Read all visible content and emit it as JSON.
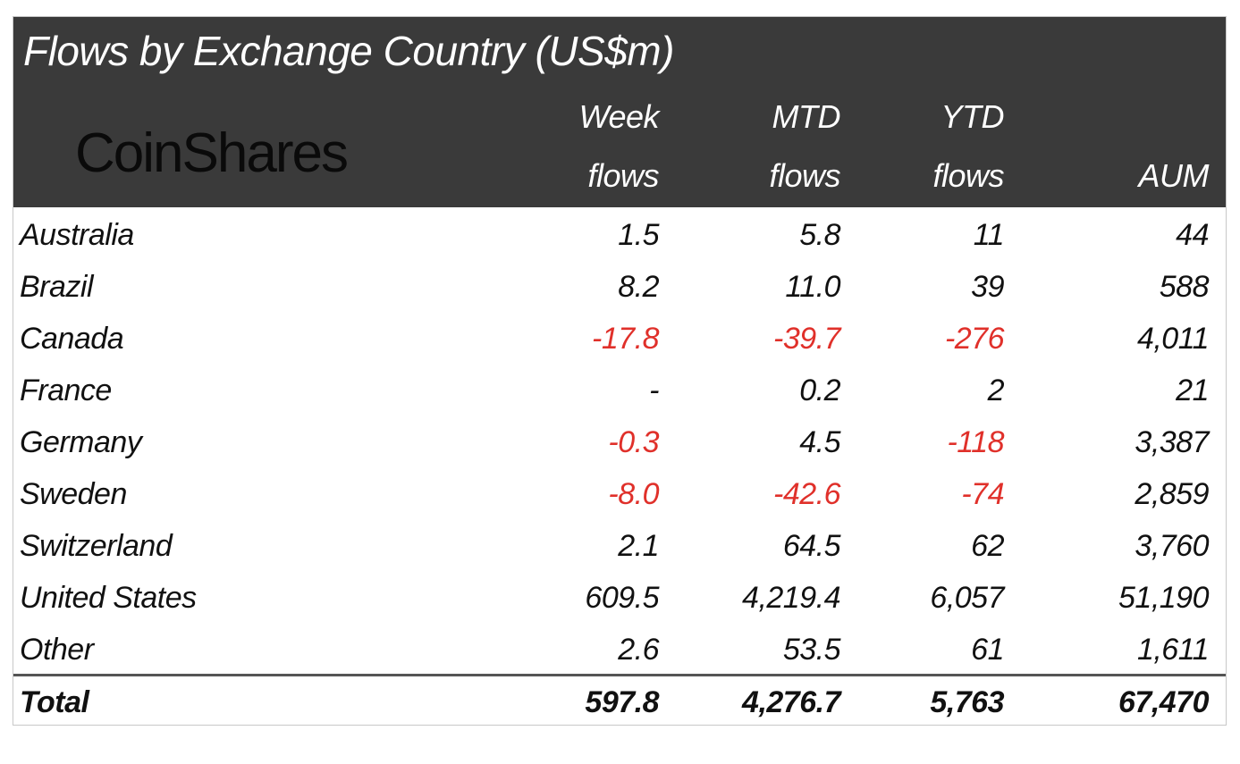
{
  "chart_data": {
    "type": "table",
    "title": "Flows by Exchange Country (US$m)",
    "logo": "CoinShares",
    "columns": [
      {
        "line1": "Week",
        "line2": "flows"
      },
      {
        "line1": "MTD",
        "line2": "flows"
      },
      {
        "line1": "YTD",
        "line2": "flows"
      },
      {
        "line1": "",
        "line2": "AUM"
      }
    ],
    "rows": [
      {
        "country": "Australia",
        "values": [
          "1.5",
          "5.8",
          "11",
          "44"
        ]
      },
      {
        "country": "Brazil",
        "values": [
          "8.2",
          "11.0",
          "39",
          "588"
        ]
      },
      {
        "country": "Canada",
        "values": [
          "-17.8",
          "-39.7",
          "-276",
          "4,011"
        ]
      },
      {
        "country": "France",
        "values": [
          "-",
          "0.2",
          "2",
          "21"
        ]
      },
      {
        "country": "Germany",
        "values": [
          "-0.3",
          "4.5",
          "-118",
          "3,387"
        ]
      },
      {
        "country": "Sweden",
        "values": [
          "-8.0",
          "-42.6",
          "-74",
          "2,859"
        ]
      },
      {
        "country": "Switzerland",
        "values": [
          "2.1",
          "64.5",
          "62",
          "3,760"
        ]
      },
      {
        "country": "United States",
        "values": [
          "609.5",
          "4,219.4",
          "6,057",
          "51,190"
        ]
      },
      {
        "country": "Other",
        "values": [
          "2.6",
          "53.5",
          "61",
          "1,611"
        ]
      }
    ],
    "total": {
      "country": "Total",
      "values": [
        "597.8",
        "4,276.7",
        "5,763",
        "67,470"
      ]
    },
    "colors": {
      "header_bg": "#3a3a3a",
      "negative": "#e0302a",
      "text": "#111111"
    }
  }
}
